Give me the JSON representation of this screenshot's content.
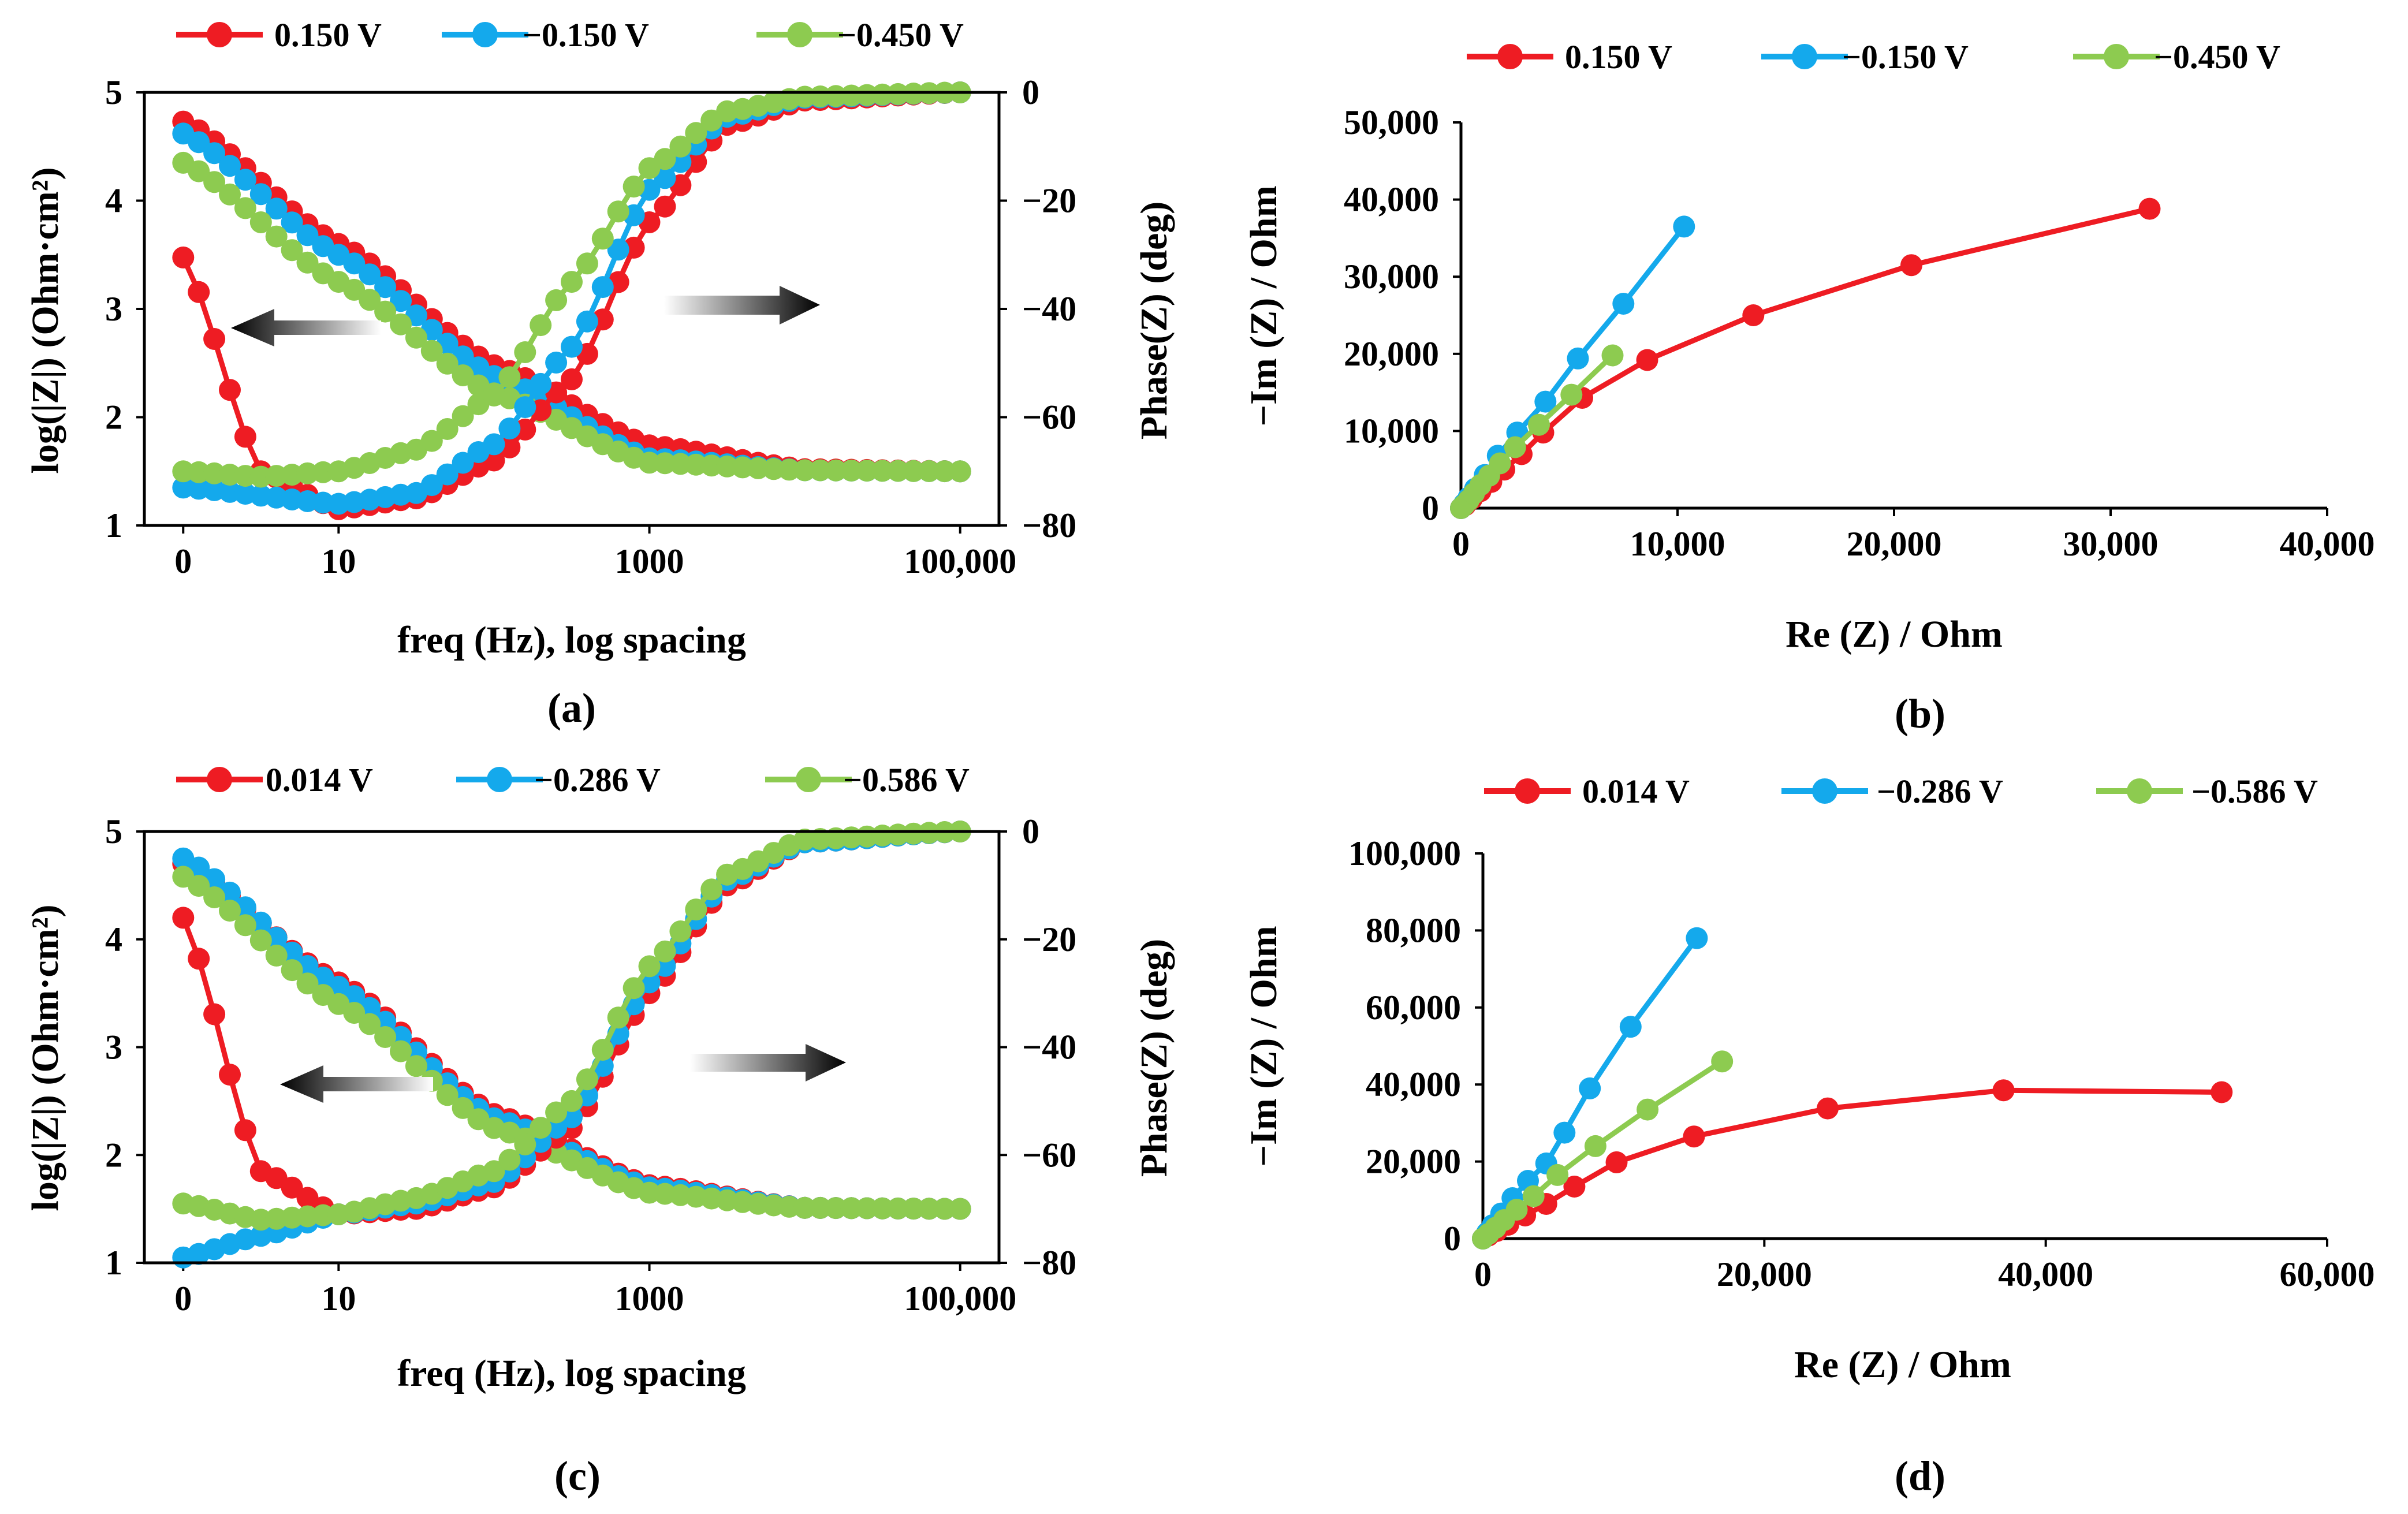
{
  "colors": {
    "red": "#ee1c23",
    "blue": "#14a9ec",
    "green": "#8dcb50",
    "axis": "#000000"
  },
  "chart_data": [
    {
      "id": "a",
      "type": "line",
      "caption": "(a)",
      "xlabel": "freq (Hz), log spacing",
      "ylabel": "log(|Z|) (Ohm·cm²)",
      "y2label": "Phase(Z) (deg)",
      "xlim": [
        -0.25,
        5.25
      ],
      "xticks": [
        0,
        1,
        3,
        5
      ],
      "xticklabels": [
        "0",
        "10",
        "1000",
        "100,000"
      ],
      "ylim": [
        1,
        5
      ],
      "yticks": [
        1,
        2,
        3,
        4,
        5
      ],
      "yticklabels": [
        "1",
        "2",
        "3",
        "4",
        "5"
      ],
      "y2lim": [
        -80,
        0
      ],
      "y2ticks": [
        -80,
        -60,
        -40,
        -20,
        0
      ],
      "y2ticklabels": [
        "−80",
        "−60",
        "−40",
        "−20",
        "0"
      ],
      "legend": [
        "0.150 V",
        "−0.150 V",
        "−0.450 V"
      ],
      "series": [
        {
          "name": "0.150 V",
          "color": "red",
          "axis": "left",
          "x": [
            0,
            1,
            2,
            3,
            4,
            5
          ],
          "y": [
            4.73,
            3.6,
            2.48,
            1.74,
            1.52,
            1.5
          ]
        },
        {
          "name": "−0.150 V",
          "color": "blue",
          "axis": "left",
          "x": [
            0,
            1,
            2,
            3,
            4,
            5
          ],
          "y": [
            4.62,
            3.5,
            2.38,
            1.62,
            1.51,
            1.5
          ]
        },
        {
          "name": "−0.450 V",
          "color": "green",
          "axis": "left",
          "x": [
            0,
            1,
            2,
            3,
            4,
            5
          ],
          "y": [
            4.35,
            3.25,
            2.22,
            1.58,
            1.51,
            1.5
          ]
        },
        {
          "name": "0.150 V phase",
          "color": "red",
          "axis": "right",
          "x": [
            0,
            0.5,
            1,
            1.5,
            2,
            2.5,
            3,
            3.5,
            4,
            5
          ],
          "y": [
            -30.5,
            -70,
            -77,
            -75,
            -68,
            -53,
            -24,
            -6,
            -1.5,
            0
          ]
        },
        {
          "name": "−0.150 V phase",
          "color": "blue",
          "axis": "right",
          "x": [
            0,
            1,
            1.5,
            2,
            2.5,
            3,
            3.5,
            4,
            5
          ],
          "y": [
            -73,
            -76,
            -74,
            -65,
            -47,
            -18,
            -4.5,
            -1,
            0
          ]
        },
        {
          "name": "−0.450 V phase",
          "color": "green",
          "axis": "right",
          "x": [
            0,
            0.5,
            1,
            1.5,
            2,
            2.5,
            3,
            3.5,
            4,
            5
          ],
          "y": [
            -70,
            -71,
            -70,
            -66,
            -56,
            -35,
            -14,
            -3.5,
            -0.8,
            0
          ]
        }
      ]
    },
    {
      "id": "b",
      "type": "scatter",
      "caption": "(b)",
      "xlabel": "Re (Z) / Ohm",
      "ylabel": "−Im (Z) / Ohm",
      "xlim": [
        0,
        40000
      ],
      "xticks": [
        0,
        10000,
        20000,
        30000,
        40000
      ],
      "xticklabels": [
        "0",
        "10,000",
        "20,000",
        "30,000",
        "40,000"
      ],
      "ylim": [
        0,
        50000
      ],
      "yticks": [
        0,
        10000,
        20000,
        30000,
        40000,
        50000
      ],
      "yticklabels": [
        "0",
        "10,000",
        "20,000",
        "30,000",
        "40,000",
        "50,000"
      ],
      "legend": [
        "0.150 V",
        "−0.150 V",
        "−0.450 V"
      ],
      "series": [
        {
          "name": "0.150 V",
          "color": "red",
          "x": [
            0,
            200,
            500,
            900,
            1400,
            2000,
            2800,
            3800,
            5600,
            8600,
            13500,
            20800,
            31800
          ],
          "y": [
            0,
            400,
            1200,
            2200,
            3400,
            5000,
            7000,
            9800,
            14300,
            19200,
            25000,
            31500,
            38800
          ]
        },
        {
          "name": "−0.150 V",
          "color": "blue",
          "x": [
            0,
            150,
            350,
            650,
            1100,
            1700,
            2600,
            3900,
            5400,
            7500,
            10300
          ],
          "y": [
            0,
            550,
            1350,
            2500,
            4300,
            6800,
            9800,
            13800,
            19400,
            26500,
            36500
          ]
        },
        {
          "name": "−0.450 V",
          "color": "green",
          "x": [
            0,
            150,
            350,
            600,
            900,
            1300,
            1800,
            2500,
            3600,
            5100,
            7000
          ],
          "y": [
            0,
            400,
            1000,
            1900,
            3000,
            4200,
            5800,
            7900,
            10800,
            14700,
            19800
          ]
        }
      ]
    },
    {
      "id": "c",
      "type": "line",
      "caption": "(c)",
      "xlabel": "freq (Hz), log spacing",
      "ylabel": "log(|Z|) (Ohm·cm²)",
      "y2label": "Phase(Z) (deg)",
      "xlim": [
        -0.25,
        5.25
      ],
      "xticks": [
        0,
        1,
        3,
        5
      ],
      "xticklabels": [
        "0",
        "10",
        "1000",
        "100,000"
      ],
      "ylim": [
        1,
        5
      ],
      "yticks": [
        1,
        2,
        3,
        4,
        5
      ],
      "yticklabels": [
        "1",
        "2",
        "3",
        "4",
        "5"
      ],
      "y2lim": [
        -80,
        0
      ],
      "y2ticks": [
        -80,
        -60,
        -40,
        -20,
        0
      ],
      "y2ticklabels": [
        "−80",
        "−60",
        "−40",
        "−20",
        "0"
      ],
      "legend": [
        "0.014 V",
        "−0.286 V",
        "−0.586 V"
      ],
      "series": [
        {
          "name": "0.014 V",
          "color": "red",
          "axis": "left",
          "x": [
            0,
            1,
            2,
            3,
            4,
            5
          ],
          "y": [
            4.7,
            3.6,
            2.38,
            1.72,
            1.51,
            1.5
          ]
        },
        {
          "name": "−0.286 V",
          "color": "blue",
          "axis": "left",
          "x": [
            0,
            1,
            2,
            3,
            4,
            5
          ],
          "y": [
            4.75,
            3.56,
            2.34,
            1.7,
            1.51,
            1.5
          ]
        },
        {
          "name": "−0.586 V",
          "color": "green",
          "axis": "left",
          "x": [
            0,
            1,
            2,
            3,
            4,
            5
          ],
          "y": [
            4.58,
            3.4,
            2.25,
            1.65,
            1.51,
            1.5
          ]
        },
        {
          "name": "0.014 V phase",
          "color": "red",
          "axis": "right",
          "x": [
            0,
            0.5,
            1,
            1.5,
            2,
            2.5,
            3,
            3.5,
            4,
            5
          ],
          "y": [
            -16,
            -63,
            -71,
            -70,
            -66,
            -55,
            -30,
            -10,
            -2,
            0
          ]
        },
        {
          "name": "−0.286 V phase",
          "color": "blue",
          "axis": "right",
          "x": [
            0,
            0.5,
            1,
            1.5,
            2,
            2.5,
            3,
            3.5,
            4,
            5
          ],
          "y": [
            -79,
            -75,
            -71,
            -69,
            -65,
            -53,
            -28,
            -9,
            -2,
            0
          ]
        },
        {
          "name": "−0.586 V phase",
          "color": "green",
          "axis": "right",
          "x": [
            0,
            0.5,
            1,
            1.5,
            2,
            2.5,
            3,
            3.5,
            4,
            5
          ],
          "y": [
            -69,
            -72,
            -71,
            -68,
            -63,
            -50,
            -25,
            -8,
            -1.5,
            0
          ]
        }
      ]
    },
    {
      "id": "d",
      "type": "scatter",
      "caption": "(d)",
      "xlabel": "Re (Z) / Ohm",
      "ylabel": "−Im (Z) / Ohm",
      "xlim": [
        0,
        60000
      ],
      "xticks": [
        0,
        20000,
        40000,
        60000
      ],
      "xticklabels": [
        "0",
        "20,000",
        "40,000",
        "60,000"
      ],
      "ylim": [
        0,
        100000
      ],
      "yticks": [
        0,
        20000,
        40000,
        60000,
        80000,
        100000
      ],
      "yticklabels": [
        "0",
        "20,000",
        "40,000",
        "60,000",
        "80,000",
        "100,000"
      ],
      "legend": [
        "0.014 V",
        "−0.286 V",
        "−0.586 V"
      ],
      "series": [
        {
          "name": "0.014 V",
          "color": "red",
          "x": [
            0,
            400,
            1000,
            1800,
            3000,
            4500,
            6500,
            9500,
            15000,
            24500,
            37000,
            52500
          ],
          "y": [
            0,
            800,
            2000,
            3600,
            6000,
            9000,
            13500,
            19800,
            26500,
            33800,
            38500,
            38000
          ]
        },
        {
          "name": "−0.286 V",
          "color": "blue",
          "x": [
            0,
            300,
            700,
            1300,
            2100,
            3200,
            4500,
            5800,
            7600,
            10500,
            15200
          ],
          "y": [
            0,
            1500,
            3500,
            6500,
            10500,
            15000,
            19500,
            27500,
            39000,
            55000,
            78000
          ]
        },
        {
          "name": "−0.586 V",
          "color": "green",
          "x": [
            0,
            400,
            900,
            1500,
            2400,
            3600,
            5300,
            8000,
            11700,
            17000
          ],
          "y": [
            0,
            1200,
            2800,
            4800,
            7500,
            11000,
            16500,
            24000,
            33500,
            46000
          ]
        }
      ]
    }
  ]
}
